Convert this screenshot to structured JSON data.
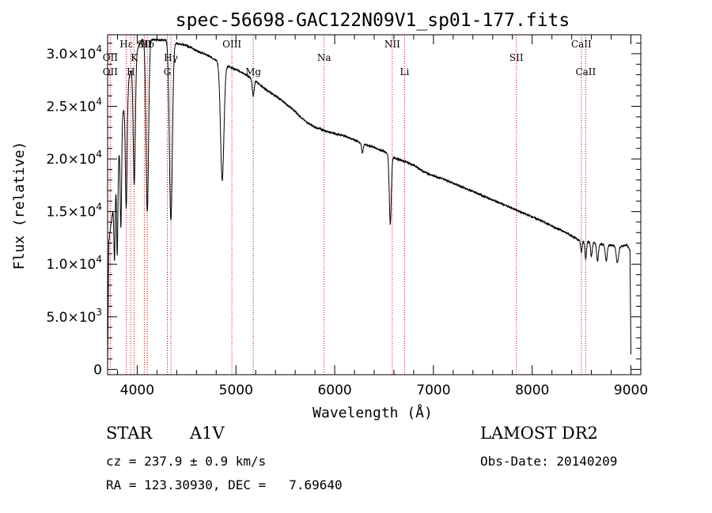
{
  "chart_data": {
    "type": "line",
    "title": "spec-56698-GAC122N09V1_sp01-177.fits",
    "xlabel": "Wavelength (Å)",
    "ylabel": "Flux (relative)",
    "xlim": [
      3700,
      9100
    ],
    "ylim": [
      -500,
      31800
    ],
    "x_ticks": [
      {
        "value": 4000,
        "label": "4000"
      },
      {
        "value": 5000,
        "label": "5000"
      },
      {
        "value": 6000,
        "label": "6000"
      },
      {
        "value": 7000,
        "label": "7000"
      },
      {
        "value": 8000,
        "label": "8000"
      },
      {
        "value": 9000,
        "label": "9000"
      }
    ],
    "y_ticks": [
      {
        "value": 0,
        "mant": "0",
        "exp": ""
      },
      {
        "value": 5000,
        "mant": "5.0×10",
        "exp": "3"
      },
      {
        "value": 10000,
        "mant": "1.0×10",
        "exp": "4"
      },
      {
        "value": 15000,
        "mant": "1.5×10",
        "exp": "4"
      },
      {
        "value": 20000,
        "mant": "2.0×10",
        "exp": "4"
      },
      {
        "value": 25000,
        "mant": "2.5×10",
        "exp": "4"
      },
      {
        "value": 30000,
        "mant": "3.0×10",
        "exp": "4"
      }
    ],
    "spectral_lines": [
      {
        "label": "OII",
        "wavelength": 3727,
        "row": "low"
      },
      {
        "label": "OII",
        "wavelength": 3727,
        "row": "mid"
      },
      {
        "label": "Hε",
        "wavelength": 3889,
        "row": "top"
      },
      {
        "label": "H",
        "wavelength": 3934,
        "row": "low"
      },
      {
        "label": "K",
        "wavelength": 3969,
        "row": "mid"
      },
      {
        "label": "Hδ",
        "wavelength": 4102,
        "row": "top"
      },
      {
        "label": "SII",
        "wavelength": 4072,
        "row": "top"
      },
      {
        "label": "G",
        "wavelength": 4305,
        "row": "low"
      },
      {
        "label": "Hγ",
        "wavelength": 4341,
        "row": "mid"
      },
      {
        "label": "OIII",
        "wavelength": 4959,
        "row": "top"
      },
      {
        "label": "Mg",
        "wavelength": 5175,
        "row": "low"
      },
      {
        "label": "Na",
        "wavelength": 5893,
        "row": "mid"
      },
      {
        "label": "NII",
        "wavelength": 6583,
        "row": "top"
      },
      {
        "label": "Li",
        "wavelength": 6708,
        "row": "low"
      },
      {
        "label": "SII",
        "wavelength": 7840,
        "row": "mid"
      },
      {
        "label": "CaII",
        "wavelength": 8498,
        "row": "top"
      },
      {
        "label": "CaII",
        "wavelength": 8542,
        "row": "low"
      }
    ],
    "series": [
      {
        "color": "#000000",
        "continuum": [
          [
            3700,
            0
          ],
          [
            3712,
            12000
          ],
          [
            3730,
            13500
          ],
          [
            3760,
            15500
          ],
          [
            3800,
            19000
          ],
          [
            3850,
            24000
          ],
          [
            3900,
            27000
          ],
          [
            3950,
            29000
          ],
          [
            4000,
            30500
          ],
          [
            4050,
            31300
          ],
          [
            4100,
            31500
          ],
          [
            4200,
            31300
          ],
          [
            4300,
            31300
          ],
          [
            4400,
            31000
          ],
          [
            4500,
            30800
          ],
          [
            4600,
            30300
          ],
          [
            4700,
            29900
          ],
          [
            4800,
            29400
          ],
          [
            4850,
            29000
          ],
          [
            4900,
            28900
          ],
          [
            5000,
            28500
          ],
          [
            5100,
            28000
          ],
          [
            5200,
            27400
          ],
          [
            5300,
            26600
          ],
          [
            5400,
            26000
          ],
          [
            5500,
            25300
          ],
          [
            5600,
            24500
          ],
          [
            5700,
            23600
          ],
          [
            5800,
            23000
          ],
          [
            5900,
            22700
          ],
          [
            6000,
            22400
          ],
          [
            6100,
            22200
          ],
          [
            6200,
            21800
          ],
          [
            6300,
            21400
          ],
          [
            6400,
            21100
          ],
          [
            6500,
            20700
          ],
          [
            6600,
            20100
          ],
          [
            6700,
            19800
          ],
          [
            6800,
            19400
          ],
          [
            6900,
            18800
          ],
          [
            7000,
            18400
          ],
          [
            7100,
            18100
          ],
          [
            7200,
            17700
          ],
          [
            7300,
            17300
          ],
          [
            7400,
            16900
          ],
          [
            7500,
            16500
          ],
          [
            7600,
            16100
          ],
          [
            7700,
            15700
          ],
          [
            7800,
            15300
          ],
          [
            7900,
            14900
          ],
          [
            8000,
            14500
          ],
          [
            8100,
            14100
          ],
          [
            8200,
            13600
          ],
          [
            8300,
            13200
          ],
          [
            8400,
            12700
          ],
          [
            8450,
            12400
          ],
          [
            8500,
            12200
          ],
          [
            8600,
            12100
          ],
          [
            8700,
            11900
          ],
          [
            8800,
            11800
          ],
          [
            8900,
            11700
          ],
          [
            8960,
            11800
          ],
          [
            8990,
            11300
          ],
          [
            9000,
            1500
          ]
        ],
        "absorption": [
          {
            "center": 3770,
            "depth": 6000,
            "width": 6
          },
          {
            "center": 3798,
            "depth": 8000,
            "width": 6
          },
          {
            "center": 3835,
            "depth": 9000,
            "width": 7
          },
          {
            "center": 3889,
            "depth": 11000,
            "width": 9
          },
          {
            "center": 3970,
            "depth": 12000,
            "width": 11
          },
          {
            "center": 4102,
            "depth": 16500,
            "width": 13
          },
          {
            "center": 4341,
            "depth": 17000,
            "width": 15
          },
          {
            "center": 4861,
            "depth": 11000,
            "width": 17
          },
          {
            "center": 5175,
            "depth": 1500,
            "width": 10
          },
          {
            "center": 6280,
            "depth": 900,
            "width": 8
          },
          {
            "center": 6563,
            "depth": 6500,
            "width": 10
          },
          {
            "center": 8498,
            "depth": 1100,
            "width": 7
          },
          {
            "center": 8542,
            "depth": 1600,
            "width": 8
          },
          {
            "center": 8600,
            "depth": 1400,
            "width": 8
          },
          {
            "center": 8662,
            "depth": 1700,
            "width": 9
          },
          {
            "center": 8750,
            "depth": 1500,
            "width": 10
          },
          {
            "center": 8863,
            "depth": 1600,
            "width": 12
          }
        ]
      }
    ]
  },
  "info": {
    "object_class": "STAR",
    "subclass": "A1V",
    "survey": "LAMOST DR2",
    "redshift": "cz = 237.9 ± 0.9 km/s",
    "obs_date": "Obs-Date: 20140209",
    "coords": "RA = 123.30930, DEC =   7.69640"
  }
}
